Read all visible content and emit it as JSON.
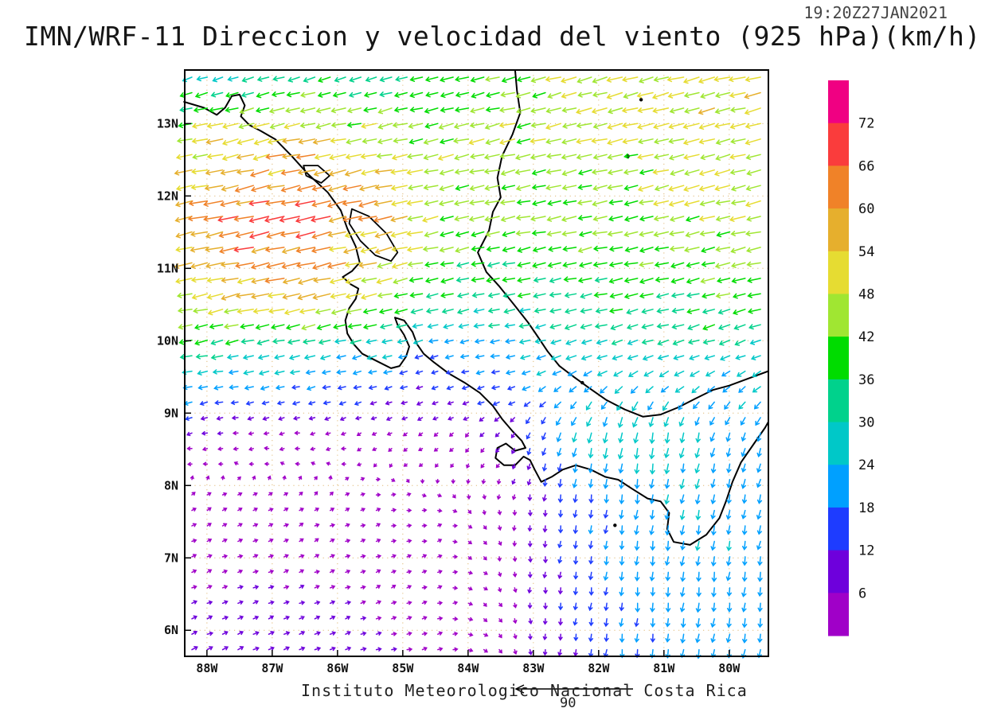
{
  "header": {
    "title": "IMN/WRF-11 Direccion y velocidad del viento (925 hPa)(km/h)",
    "timestamp": "19:20Z27JAN2021"
  },
  "footer": {
    "credit": "Instituto Meteorologico Nacional Costa Rica",
    "ref_vector_label": "90"
  },
  "chart_data": {
    "type": "quiver",
    "title": "IMN/WRF-11 Direccion y velocidad del viento (925 hPa)(km/h)",
    "units": "km/h",
    "level": "925 hPa",
    "lon_range": [
      -88.34,
      -79.4
    ],
    "lat_range": [
      5.64,
      13.74
    ],
    "x_ticks": [
      {
        "label": "88W",
        "value": -88
      },
      {
        "label": "87W",
        "value": -87
      },
      {
        "label": "86W",
        "value": -86
      },
      {
        "label": "85W",
        "value": -85
      },
      {
        "label": "84W",
        "value": -84
      },
      {
        "label": "83W",
        "value": -83
      },
      {
        "label": "82W",
        "value": -82
      },
      {
        "label": "81W",
        "value": -81
      },
      {
        "label": "80W",
        "value": -80
      }
    ],
    "y_ticks": [
      {
        "label": "13N",
        "value": 13
      },
      {
        "label": "12N",
        "value": 12
      },
      {
        "label": "11N",
        "value": 11
      },
      {
        "label": "10N",
        "value": 10
      },
      {
        "label": "9N",
        "value": 9
      },
      {
        "label": "8N",
        "value": 8
      },
      {
        "label": "7N",
        "value": 7
      },
      {
        "label": "6N",
        "value": 6
      }
    ],
    "colorbar": {
      "labels": [
        "72",
        "66",
        "60",
        "54",
        "48",
        "42",
        "36",
        "30",
        "24",
        "18",
        "12",
        "6"
      ],
      "thresholds": [
        6,
        12,
        18,
        24,
        30,
        36,
        42,
        48,
        54,
        60,
        66,
        72
      ],
      "colors": [
        "#a000c8",
        "#6e00dc",
        "#1e3cff",
        "#00a0ff",
        "#00c8c8",
        "#00d28c",
        "#00dc00",
        "#a0e632",
        "#e6dc32",
        "#e6af2d",
        "#f08228",
        "#fa3c3c",
        "#f00082"
      ]
    },
    "wind_grid": {
      "lons": [
        -88.4,
        -87.4,
        -86.4,
        -85.4,
        -84.4,
        -83.4,
        -82.4,
        -81.4,
        -80.4,
        -79.4
      ],
      "lats": [
        13.75,
        12.75,
        11.75,
        10.75,
        9.75,
        8.75,
        7.75,
        6.75,
        5.6
      ],
      "u": [
        [
          -26,
          -28,
          -34,
          -30,
          -34,
          -40,
          -45,
          -48,
          -50,
          -50
        ],
        [
          -48,
          -52,
          -54,
          -48,
          -44,
          -44,
          -44,
          -45,
          -47,
          -48
        ],
        [
          -56,
          -64,
          -66,
          -58,
          -45,
          -42,
          -42,
          -43,
          -45,
          -46
        ],
        [
          -50,
          -56,
          -58,
          -50,
          -36,
          -34,
          -35,
          -37,
          -39,
          -41
        ],
        [
          -30,
          -28,
          -25,
          -22,
          -15,
          -22,
          -26,
          -28,
          -27,
          -24
        ],
        [
          -8,
          -6,
          -5,
          -4,
          -4,
          -5,
          -6,
          -5,
          -6,
          -8
        ],
        [
          4,
          4,
          3,
          3,
          2,
          0,
          -2,
          -3,
          -4,
          -5
        ],
        [
          5,
          5,
          5,
          4,
          3,
          1,
          -2,
          -2,
          -3,
          -4
        ],
        [
          11,
          10,
          9,
          7,
          5,
          2,
          -2,
          -2,
          -3,
          -3
        ]
      ],
      "v": [
        [
          -8,
          -8,
          -10,
          -8,
          -10,
          -10,
          -12,
          -12,
          -12,
          -12
        ],
        [
          -10,
          -12,
          -12,
          -10,
          -10,
          -10,
          -10,
          -10,
          -11,
          -12
        ],
        [
          -12,
          -14,
          -15,
          -12,
          -10,
          -9,
          -9,
          -9,
          -10,
          -10
        ],
        [
          -10,
          -12,
          -13,
          -11,
          -8,
          -7,
          -7,
          -8,
          -9,
          -10
        ],
        [
          -6,
          -6,
          -6,
          -6,
          -4,
          -4,
          -8,
          -9,
          -9,
          -11
        ],
        [
          -2,
          -1,
          -1,
          -2,
          -3,
          -6,
          -24,
          -30,
          -22,
          -20
        ],
        [
          2,
          2,
          2,
          1,
          0,
          -4,
          -16,
          -22,
          -23,
          -21
        ],
        [
          2,
          2,
          2,
          2,
          1,
          -3,
          -14,
          -20,
          -22,
          -21
        ],
        [
          4,
          4,
          3,
          2,
          1,
          -3,
          -12,
          -18,
          -20,
          -19
        ]
      ]
    },
    "coastlines": [
      {
        "name": "pacific-central-america",
        "points": [
          [
            -88.35,
            13.3
          ],
          [
            -88.05,
            13.22
          ],
          [
            -87.85,
            13.12
          ],
          [
            -87.72,
            13.22
          ],
          [
            -87.62,
            13.38
          ],
          [
            -87.5,
            13.4
          ],
          [
            -87.42,
            13.25
          ],
          [
            -87.48,
            13.1
          ],
          [
            -87.35,
            12.98
          ],
          [
            -87.18,
            12.9
          ],
          [
            -86.95,
            12.78
          ],
          [
            -86.7,
            12.55
          ],
          [
            -86.45,
            12.3
          ],
          [
            -86.15,
            12.05
          ],
          [
            -85.95,
            11.8
          ],
          [
            -85.85,
            11.55
          ],
          [
            -85.72,
            11.3
          ],
          [
            -85.66,
            11.08
          ],
          [
            -85.78,
            10.96
          ],
          [
            -85.92,
            10.88
          ],
          [
            -85.8,
            10.78
          ],
          [
            -85.68,
            10.72
          ],
          [
            -85.72,
            10.58
          ],
          [
            -85.82,
            10.45
          ],
          [
            -85.88,
            10.28
          ],
          [
            -85.85,
            10.1
          ],
          [
            -85.75,
            9.95
          ],
          [
            -85.62,
            9.82
          ],
          [
            -85.4,
            9.72
          ],
          [
            -85.18,
            9.62
          ],
          [
            -85.05,
            9.65
          ],
          [
            -84.95,
            9.78
          ],
          [
            -84.9,
            9.92
          ],
          [
            -84.98,
            10.08
          ],
          [
            -85.08,
            10.22
          ],
          [
            -85.12,
            10.32
          ],
          [
            -84.98,
            10.28
          ],
          [
            -84.85,
            10.12
          ],
          [
            -84.78,
            9.95
          ],
          [
            -84.68,
            9.82
          ],
          [
            -84.52,
            9.7
          ],
          [
            -84.3,
            9.55
          ],
          [
            -84.05,
            9.42
          ],
          [
            -83.82,
            9.28
          ],
          [
            -83.62,
            9.1
          ],
          [
            -83.48,
            8.92
          ],
          [
            -83.32,
            8.75
          ],
          [
            -83.18,
            8.62
          ],
          [
            -83.12,
            8.52
          ],
          [
            -83.28,
            8.48
          ],
          [
            -83.42,
            8.58
          ],
          [
            -83.55,
            8.52
          ],
          [
            -83.58,
            8.38
          ],
          [
            -83.45,
            8.28
          ],
          [
            -83.28,
            8.28
          ],
          [
            -83.15,
            8.4
          ],
          [
            -83.05,
            8.35
          ],
          [
            -82.98,
            8.22
          ],
          [
            -82.88,
            8.05
          ],
          [
            -82.72,
            8.12
          ],
          [
            -82.55,
            8.22
          ],
          [
            -82.35,
            8.28
          ],
          [
            -82.12,
            8.22
          ],
          [
            -81.9,
            8.12
          ],
          [
            -81.7,
            8.08
          ],
          [
            -81.48,
            7.95
          ],
          [
            -81.25,
            7.82
          ],
          [
            -81.05,
            7.78
          ],
          [
            -80.92,
            7.62
          ],
          [
            -80.95,
            7.4
          ],
          [
            -80.85,
            7.22
          ],
          [
            -80.6,
            7.18
          ],
          [
            -80.35,
            7.32
          ],
          [
            -80.15,
            7.55
          ],
          [
            -80.05,
            7.78
          ],
          [
            -79.95,
            8.05
          ],
          [
            -79.82,
            8.32
          ],
          [
            -79.62,
            8.58
          ],
          [
            -79.45,
            8.8
          ],
          [
            -79.4,
            8.88
          ]
        ]
      },
      {
        "name": "caribbean-central-america",
        "points": [
          [
            -83.28,
            13.74
          ],
          [
            -83.25,
            13.45
          ],
          [
            -83.2,
            13.15
          ],
          [
            -83.32,
            12.85
          ],
          [
            -83.48,
            12.55
          ],
          [
            -83.55,
            12.25
          ],
          [
            -83.5,
            11.98
          ],
          [
            -83.62,
            11.78
          ],
          [
            -83.68,
            11.52
          ],
          [
            -83.85,
            11.22
          ],
          [
            -83.72,
            10.95
          ],
          [
            -83.52,
            10.75
          ],
          [
            -83.28,
            10.48
          ],
          [
            -83.08,
            10.25
          ],
          [
            -82.95,
            10.08
          ],
          [
            -82.78,
            9.85
          ],
          [
            -82.6,
            9.65
          ],
          [
            -82.38,
            9.5
          ],
          [
            -82.15,
            9.35
          ],
          [
            -81.88,
            9.18
          ],
          [
            -81.6,
            9.05
          ],
          [
            -81.32,
            8.95
          ],
          [
            -81.05,
            8.98
          ],
          [
            -80.78,
            9.08
          ],
          [
            -80.52,
            9.2
          ],
          [
            -80.25,
            9.32
          ],
          [
            -80.0,
            9.38
          ],
          [
            -79.7,
            9.48
          ],
          [
            -79.4,
            9.58
          ]
        ]
      }
    ],
    "lakes": [
      {
        "name": "lake-nicaragua",
        "points": [
          [
            -85.78,
            11.82
          ],
          [
            -85.52,
            11.72
          ],
          [
            -85.25,
            11.48
          ],
          [
            -85.08,
            11.22
          ],
          [
            -85.18,
            11.1
          ],
          [
            -85.42,
            11.18
          ],
          [
            -85.65,
            11.38
          ],
          [
            -85.82,
            11.62
          ],
          [
            -85.78,
            11.82
          ]
        ]
      },
      {
        "name": "lake-managua",
        "points": [
          [
            -86.52,
            12.42
          ],
          [
            -86.3,
            12.42
          ],
          [
            -86.12,
            12.28
          ],
          [
            -86.25,
            12.18
          ],
          [
            -86.48,
            12.28
          ],
          [
            -86.52,
            12.42
          ]
        ]
      }
    ],
    "islands": [
      {
        "name": "providencia",
        "lon": -81.35,
        "lat": 13.33
      },
      {
        "name": "san-andres",
        "lon": -81.55,
        "lat": 12.55
      },
      {
        "name": "bocas-del-toro",
        "lon": -82.25,
        "lat": 9.42
      },
      {
        "name": "coiba",
        "lon": -81.75,
        "lat": 7.45
      }
    ]
  }
}
